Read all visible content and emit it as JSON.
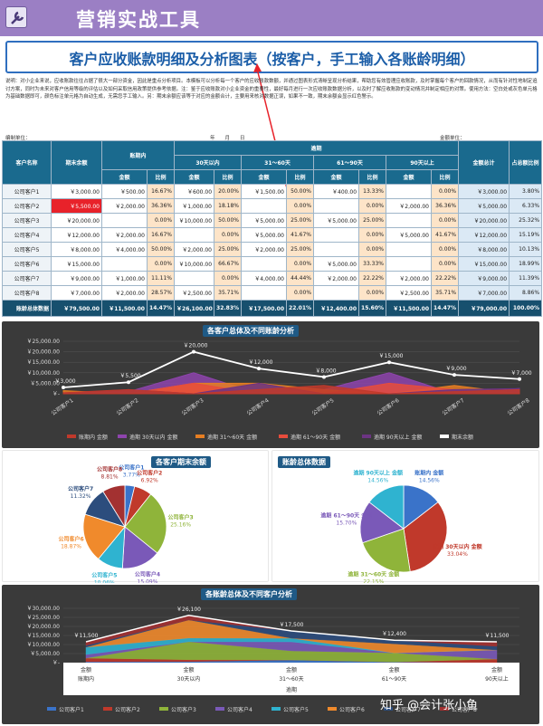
{
  "app": {
    "title": "营销实战工具"
  },
  "report": {
    "title": "客户应收账款明细及分析图表（按客户，手工输入各账龄明细）",
    "description": "说明：对小企业来说，应收账款往往占据了很大一部分资金，因此是重点分析项目。本模板可以分析每一个客户的应收账款数额，并通过图表形式清晰呈现分析结果，帮助您有效管理应收账款，及时掌握每个客户的回款情况，从而有针对性地制定追讨方案，同时为未来对客户信用等级的评估以及如何采取信用政策提供参考依据。注：鉴于应收账款对小企业资金的重要性，最好每月进行一次应收账款数据分析，以及时了解应收账款的变动情况并制定相应的对策。使用方法：空白处或灰色单元格为基础数据即可，颜色标注单元格为自动生成，无需您手工输入。另：期末余额应该等于对应的金额合计，主要用来核对数据正误，如果不一致，期末余额会显示红色警示。",
    "meta_left": "编制单位：",
    "meta_mid": "年　　月　　日",
    "meta_right": "金额单位："
  },
  "table": {
    "h_customer": "客户名称",
    "h_balance": "期末余额",
    "h_within": "账期内",
    "h_overdue": "逾期",
    "h_30": "30天以内",
    "h_31_60": "31～60天",
    "h_61_90": "61～90天",
    "h_90": "90天以上",
    "h_total": "金额总计",
    "h_share": "占总额比例",
    "h_amount": "金额",
    "h_ratio": "比例",
    "rows": [
      {
        "name": "公司客户1",
        "bal": "￥3,000.00",
        "in_a": "￥500.00",
        "in_r": "16.67%",
        "d30_a": "￥600.00",
        "d30_r": "20.00%",
        "d60_a": "￥1,500.00",
        "d60_r": "50.00%",
        "d90_a": "￥400.00",
        "d90_r": "13.33%",
        "dx_a": "",
        "dx_r": "0.00%",
        "tot": "￥3,000.00",
        "sh": "3.80%",
        "red": false
      },
      {
        "name": "公司客户2",
        "bal": "￥5,500.00",
        "in_a": "￥2,000.00",
        "in_r": "36.36%",
        "d30_a": "￥1,000.00",
        "d30_r": "18.18%",
        "d60_a": "",
        "d60_r": "0.00%",
        "d90_a": "",
        "d90_r": "0.00%",
        "dx_a": "￥2,000.00",
        "dx_r": "36.36%",
        "tot": "￥5,000.00",
        "sh": "6.33%",
        "red": true
      },
      {
        "name": "公司客户3",
        "bal": "￥20,000.00",
        "in_a": "",
        "in_r": "0.00%",
        "d30_a": "￥10,000.00",
        "d30_r": "50.00%",
        "d60_a": "￥5,000.00",
        "d60_r": "25.00%",
        "d90_a": "￥5,000.00",
        "d90_r": "25.00%",
        "dx_a": "",
        "dx_r": "0.00%",
        "tot": "￥20,000.00",
        "sh": "25.32%",
        "red": false
      },
      {
        "name": "公司客户4",
        "bal": "￥12,000.00",
        "in_a": "￥2,000.00",
        "in_r": "16.67%",
        "d30_a": "",
        "d30_r": "0.00%",
        "d60_a": "￥5,000.00",
        "d60_r": "41.67%",
        "d90_a": "",
        "d90_r": "0.00%",
        "dx_a": "￥5,000.00",
        "dx_r": "41.67%",
        "tot": "￥12,000.00",
        "sh": "15.19%",
        "red": false
      },
      {
        "name": "公司客户5",
        "bal": "￥8,000.00",
        "in_a": "￥4,000.00",
        "in_r": "50.00%",
        "d30_a": "￥2,000.00",
        "d30_r": "25.00%",
        "d60_a": "￥2,000.00",
        "d60_r": "25.00%",
        "d90_a": "",
        "d90_r": "0.00%",
        "dx_a": "",
        "dx_r": "0.00%",
        "tot": "￥8,000.00",
        "sh": "10.13%",
        "red": false
      },
      {
        "name": "公司客户6",
        "bal": "￥15,000.00",
        "in_a": "",
        "in_r": "0.00%",
        "d30_a": "￥10,000.00",
        "d30_r": "66.67%",
        "d60_a": "",
        "d60_r": "0.00%",
        "d90_a": "￥5,000.00",
        "d90_r": "33.33%",
        "dx_a": "",
        "dx_r": "0.00%",
        "tot": "￥15,000.00",
        "sh": "18.99%",
        "red": false
      },
      {
        "name": "公司客户7",
        "bal": "￥9,000.00",
        "in_a": "￥1,000.00",
        "in_r": "11.11%",
        "d30_a": "",
        "d30_r": "0.00%",
        "d60_a": "￥4,000.00",
        "d60_r": "44.44%",
        "d90_a": "￥2,000.00",
        "d90_r": "22.22%",
        "dx_a": "￥2,000.00",
        "dx_r": "22.22%",
        "tot": "￥9,000.00",
        "sh": "11.39%",
        "red": false
      },
      {
        "name": "公司客户8",
        "bal": "￥7,000.00",
        "in_a": "￥2,000.00",
        "in_r": "28.57%",
        "d30_a": "￥2,500.00",
        "d30_r": "35.71%",
        "d60_a": "",
        "d60_r": "0.00%",
        "d90_a": "",
        "d90_r": "0.00%",
        "dx_a": "￥2,500.00",
        "dx_r": "35.71%",
        "tot": "￥7,000.00",
        "sh": "8.86%",
        "red": false
      }
    ],
    "sum": {
      "name": "账龄总体数据",
      "bal": "￥79,500.00",
      "in_a": "￥11,500.00",
      "in_r": "14.47%",
      "d30_a": "￥26,100.00",
      "d30_r": "32.83%",
      "d60_a": "￥17,500.00",
      "d60_r": "22.01%",
      "d90_a": "￥12,400.00",
      "d90_r": "15.60%",
      "dx_a": "￥11,500.00",
      "dx_r": "14.47%",
      "tot": "￥79,000.00",
      "sh": "100.00%"
    }
  },
  "colors": {
    "within": "#c0392b",
    "d30": "#8e44ad",
    "d60": "#e67e22",
    "d90": "#e74c3c",
    "dx": "#6c3483",
    "line": "#ffffff"
  },
  "watermark": "知乎 @会计张小鱼",
  "chart_data": [
    {
      "type": "area",
      "title": "各客户总体及不同账龄分析",
      "categories": [
        "公司客户1",
        "公司客户2",
        "公司客户3",
        "公司客户4",
        "公司客户5",
        "公司客户6",
        "公司客户7",
        "公司客户8"
      ],
      "ylim": [
        0,
        25000
      ],
      "ticks": [
        "￥25,000.00",
        "￥20,000.00",
        "￥15,000.00",
        "￥10,000.00",
        "￥5,000.00",
        "￥-"
      ],
      "series": [
        {
          "name": "账期内 金额",
          "values": [
            500,
            2000,
            0,
            2000,
            4000,
            0,
            1000,
            2000
          ]
        },
        {
          "name": "逾期 30天以内 金额",
          "values": [
            600,
            1000,
            10000,
            0,
            2000,
            10000,
            0,
            2500
          ]
        },
        {
          "name": "逾期 31～60天 金额",
          "values": [
            1500,
            0,
            5000,
            5000,
            2000,
            0,
            4000,
            0
          ]
        },
        {
          "name": "逾期 61～90天 金额",
          "values": [
            400,
            0,
            5000,
            0,
            0,
            5000,
            2000,
            0
          ]
        },
        {
          "name": "逾期 90天以上 金额",
          "values": [
            0,
            2000,
            0,
            5000,
            0,
            0,
            2000,
            2500
          ]
        },
        {
          "name": "期末余额",
          "values": [
            3000,
            5500,
            20000,
            12000,
            8000,
            15000,
            9000,
            7000
          ]
        }
      ],
      "data_labels": [
        "￥3,000",
        "￥5,500",
        "￥20,000",
        "￥12,000",
        "￥8,000",
        "￥15,000",
        "￥9,000",
        "￥7,000"
      ]
    },
    {
      "type": "pie",
      "title": "各客户期末余额",
      "labels": [
        "公司客户1",
        "公司客户2",
        "公司客户3",
        "公司客户4",
        "公司客户5",
        "公司客户6",
        "公司客户7",
        "公司客户8"
      ],
      "values": [
        3.77,
        6.92,
        25.16,
        15.09,
        10.06,
        18.87,
        11.32,
        8.81
      ],
      "display": [
        "3.77%",
        "6.92%",
        "25.16%",
        "15.09%",
        "10.06%",
        "18.87%",
        "11.32%",
        "8.81%"
      ],
      "colors": [
        "#3a73c9",
        "#c0392b",
        "#8fb43a",
        "#7a59b8",
        "#2fb3d0",
        "#f08a2c",
        "#2c4d7d",
        "#a33131"
      ]
    },
    {
      "type": "pie",
      "title": "账龄总体数据",
      "labels": [
        "账期内 金额",
        "逾期 30天以内 金额",
        "逾期 31～60天 金额",
        "逾期 61～90天 金额",
        "逾期 90天以上 金额"
      ],
      "values": [
        14.56,
        33.04,
        22.15,
        15.7,
        14.56
      ],
      "display": [
        "14.56%",
        "33.04%",
        "22.15%",
        "15.70%",
        "14.56%"
      ],
      "label_text": [
        "账期内 金额",
        "逾期 30天以内 金额",
        "逾期 31～60天 金额",
        "逾期 61～90天 金额",
        "逾期 90天以上 金额"
      ],
      "colors": [
        "#3a73c9",
        "#c0392b",
        "#8fb43a",
        "#7a59b8",
        "#2fb3d0"
      ]
    },
    {
      "type": "area",
      "title": "各账龄总体及不同客户分析",
      "categories": [
        "金额",
        "金额",
        "金额",
        "金额",
        "金额"
      ],
      "subcategories": [
        "账期内",
        "30天以内",
        "31～60天",
        "61～90天",
        "90天以上"
      ],
      "group_label": "逾期",
      "ylim": [
        0,
        30000
      ],
      "ticks": [
        "￥30,000.00",
        "￥25,000.00",
        "￥20,000.00",
        "￥15,000.00",
        "￥10,000.00",
        "￥5,000.00",
        "￥-"
      ],
      "series": [
        {
          "name": "公司客户1",
          "values": [
            500,
            600,
            1500,
            400,
            0
          ]
        },
        {
          "name": "公司客户2",
          "values": [
            2000,
            1000,
            0,
            0,
            2000
          ]
        },
        {
          "name": "公司客户3",
          "values": [
            0,
            10000,
            5000,
            5000,
            0
          ]
        },
        {
          "name": "公司客户4",
          "values": [
            2000,
            0,
            5000,
            0,
            5000
          ]
        },
        {
          "name": "公司客户5",
          "values": [
            4000,
            2000,
            2000,
            0,
            0
          ]
        },
        {
          "name": "公司客户6",
          "values": [
            0,
            10000,
            0,
            5000,
            0
          ]
        },
        {
          "name": "公司客户7",
          "values": [
            1000,
            0,
            4000,
            2000,
            2000
          ]
        },
        {
          "name": "公司客户8",
          "values": [
            2000,
            2500,
            0,
            0,
            2500
          ]
        }
      ],
      "totals": [
        11500,
        26100,
        17500,
        12400,
        11500
      ],
      "data_labels": [
        "￥11,500",
        "￥26,100",
        "￥17,500",
        "￥12,400",
        "￥11,500"
      ],
      "colors": [
        "#3a73c9",
        "#c0392b",
        "#8fb43a",
        "#7a59b8",
        "#2fb3d0",
        "#f08a2c",
        "#2c4d7d",
        "#a33131"
      ]
    }
  ]
}
